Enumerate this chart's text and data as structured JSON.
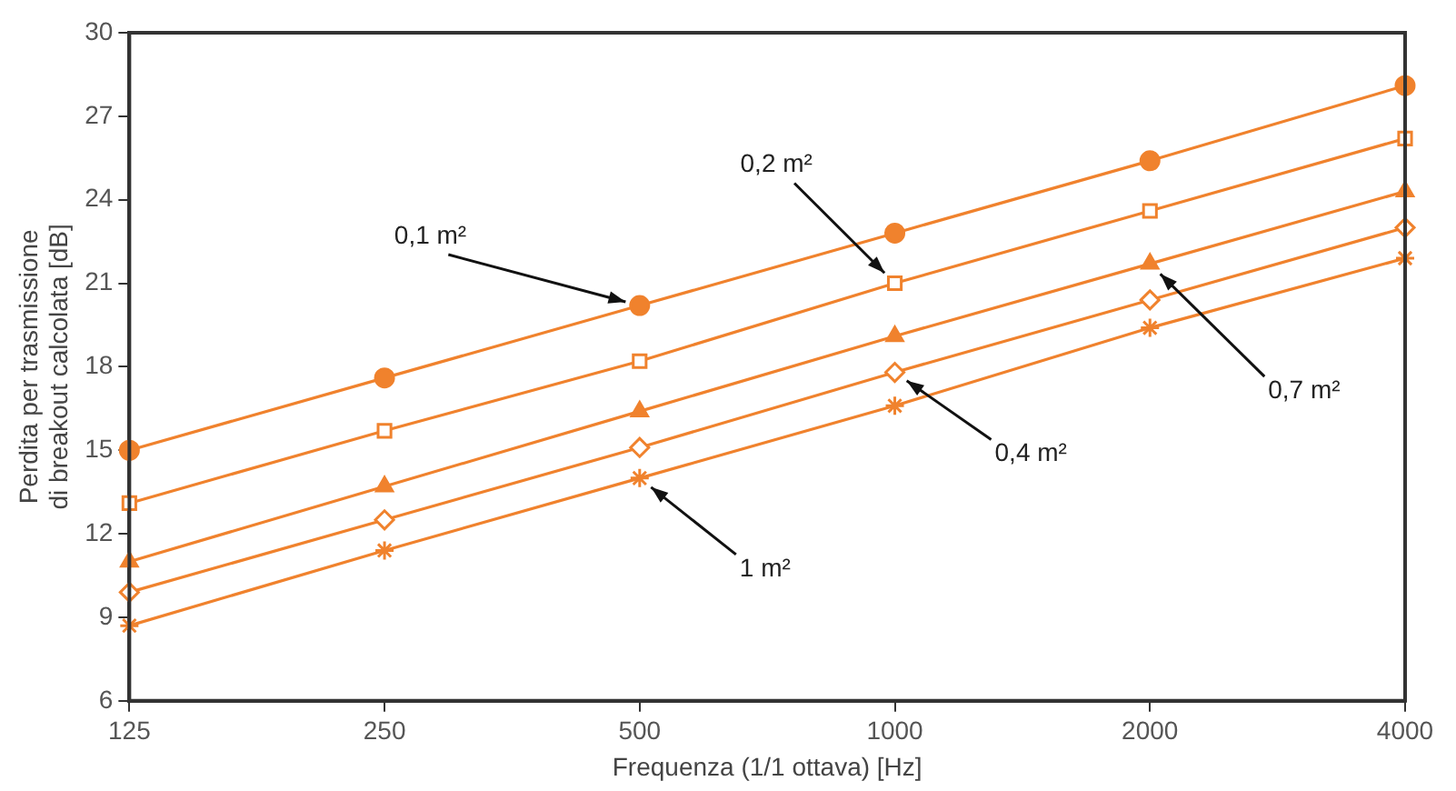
{
  "chart_data": {
    "type": "line",
    "xlabel": "Frequenza (1/1 ottava) [Hz]",
    "ylabel": "Perdita per trasmissione di breakout calcolata [dB]",
    "categories": [
      "125",
      "250",
      "500",
      "1000",
      "2000",
      "4000"
    ],
    "ylim": [
      6,
      30
    ],
    "yticks": [
      6,
      9,
      12,
      15,
      18,
      21,
      24,
      27,
      30
    ],
    "legend": false,
    "series": [
      {
        "name": "0,1 m²",
        "color": "#f0822d",
        "marker": "circle",
        "values": [
          15.0,
          17.6,
          20.2,
          22.8,
          25.4,
          28.1
        ]
      },
      {
        "name": "0,2 m²",
        "color": "#f0822d",
        "marker": "square",
        "values": [
          13.1,
          15.7,
          18.2,
          21.0,
          23.6,
          26.2
        ]
      },
      {
        "name": "0,7 m²",
        "color": "#f0822d",
        "marker": "triangle",
        "values": [
          11.0,
          13.7,
          16.4,
          19.1,
          21.7,
          24.3
        ]
      },
      {
        "name": "0,4 m²",
        "color": "#f0822d",
        "marker": "diamond",
        "values": [
          9.9,
          12.5,
          15.1,
          17.8,
          20.4,
          23.0
        ]
      },
      {
        "name": "1 m²",
        "color": "#f0822d",
        "marker": "cross",
        "values": [
          8.7,
          11.4,
          14.0,
          16.6,
          19.4,
          21.9
        ]
      }
    ]
  }
}
